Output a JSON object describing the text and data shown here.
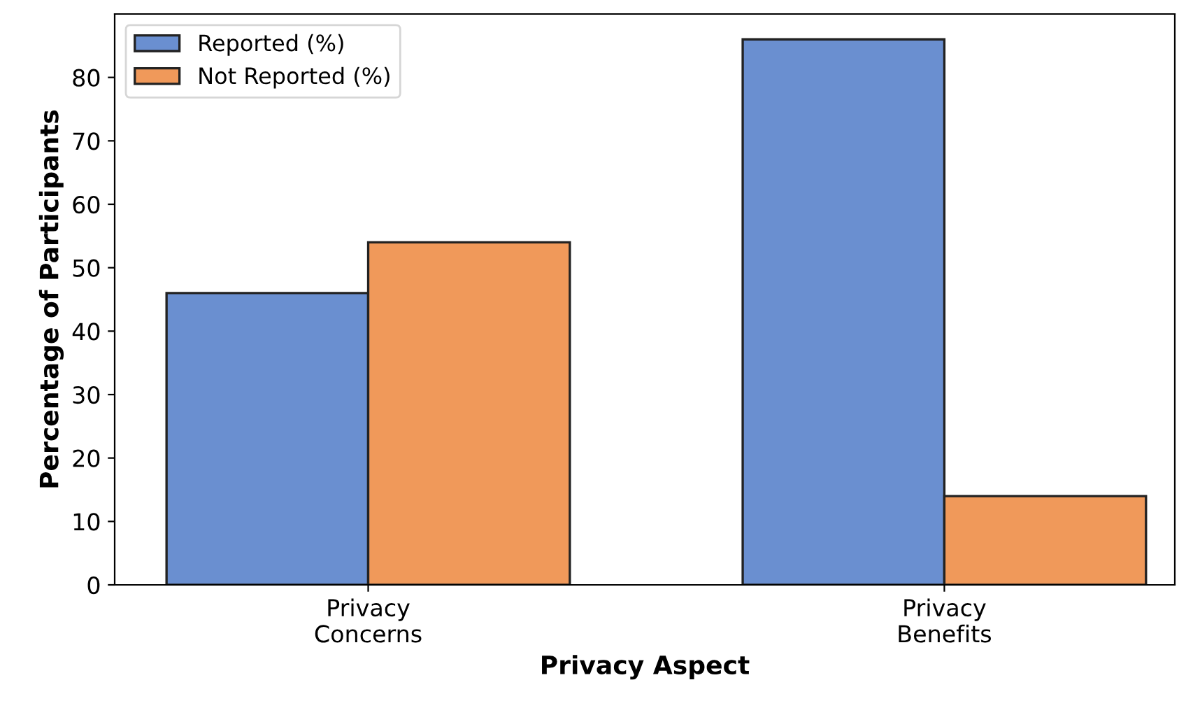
{
  "chart_data": {
    "type": "bar",
    "xlabel": "Privacy Aspect",
    "ylabel": "Percentage of Participants",
    "categories": [
      "Privacy\nConcerns",
      "Privacy\nBenefits"
    ],
    "series": [
      {
        "name": "Reported (%)",
        "color": "#6a8fd0",
        "values": [
          46,
          86
        ]
      },
      {
        "name": "Not Reported (%)",
        "color": "#f0995a",
        "values": [
          54,
          14
        ]
      }
    ],
    "ylim": [
      0,
      90
    ],
    "yticks": [
      0,
      10,
      20,
      30,
      40,
      50,
      60,
      70,
      80
    ],
    "legend": "top left",
    "grid": false
  }
}
